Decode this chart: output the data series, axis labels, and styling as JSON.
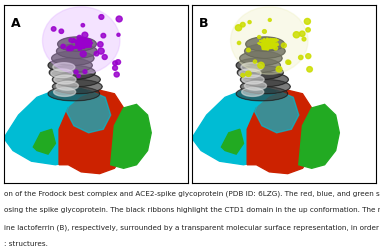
{
  "fig_width": 3.8,
  "fig_height": 2.5,
  "dpi": 100,
  "bg_color": "#ffffff",
  "panel_border_color": "#000000",
  "panel_A_label": "A",
  "panel_B_label": "B",
  "caption_lines": [
    "on of the Frodock best complex and ACE2-spike glycoprotein (PDB ID: 6LZG). The red, blue, and green solid surfaces",
    "osing the spike glycoprotein. The black ribbons highlight the CTD1 domain in the up conformation. The magenta and yell",
    "ine lactoferrin (B), respectively, surrounded by a transparent molecular surface representation, in order to point out the",
    ": structures."
  ],
  "caption_fontsize": 5.2,
  "caption_color": "#222222",
  "label_fontsize": 9,
  "colors": {
    "cyan": "#00bcd4",
    "red": "#cc2200",
    "green": "#22aa22",
    "purple_dark": "#9900cc",
    "purple_light": "#e0b0ff",
    "yellow_green": "#ccdd00",
    "yellow_light": "#eef0c0",
    "gray_light": "#cccccc",
    "black": "#111111",
    "white": "#ffffff"
  }
}
